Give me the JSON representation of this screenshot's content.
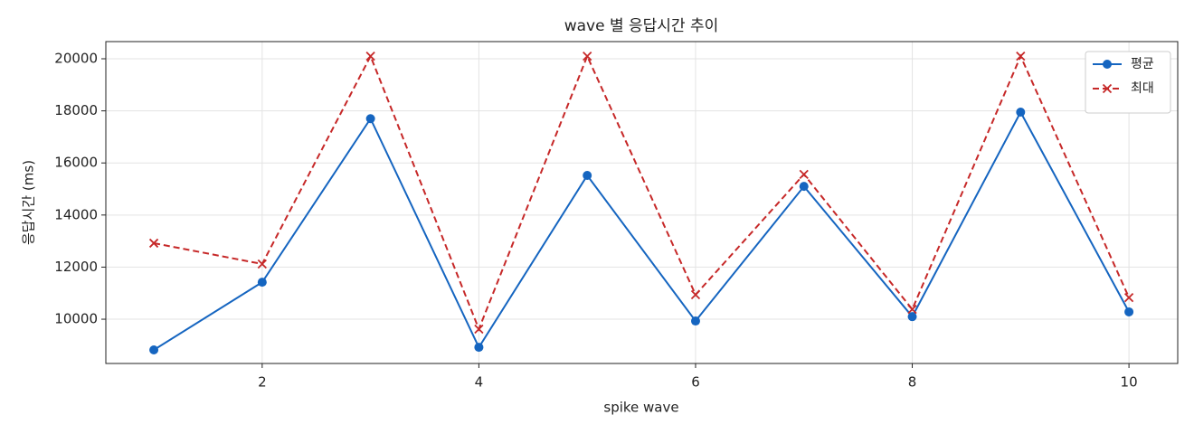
{
  "chart_data": {
    "type": "line",
    "title": "wave 별 응답시간 추이",
    "x_label": "spike wave",
    "y_label": "응답시간 (ms)",
    "x": [
      1,
      2,
      3,
      4,
      5,
      6,
      7,
      8,
      9,
      10
    ],
    "series": [
      {
        "name": "평균",
        "color": "#1565c0",
        "marker": "circle",
        "linestyle": "solid",
        "values": [
          8820,
          11420,
          17700,
          8920,
          15520,
          9930,
          15100,
          10100,
          17950,
          10280
        ]
      },
      {
        "name": "최대",
        "color": "#c62828",
        "marker": "x",
        "linestyle": "dashed",
        "values": [
          12920,
          12120,
          20100,
          9620,
          20100,
          10940,
          15560,
          10380,
          20100,
          10830
        ]
      }
    ],
    "xlim": [
      0.557,
      10.45
    ],
    "xticks": [
      2,
      4,
      6,
      8,
      10
    ],
    "ylim": [
      8300,
      20660
    ],
    "yticks": [
      10000,
      12000,
      14000,
      16000,
      18000,
      20000
    ],
    "grid": true,
    "legend": "upper right"
  }
}
